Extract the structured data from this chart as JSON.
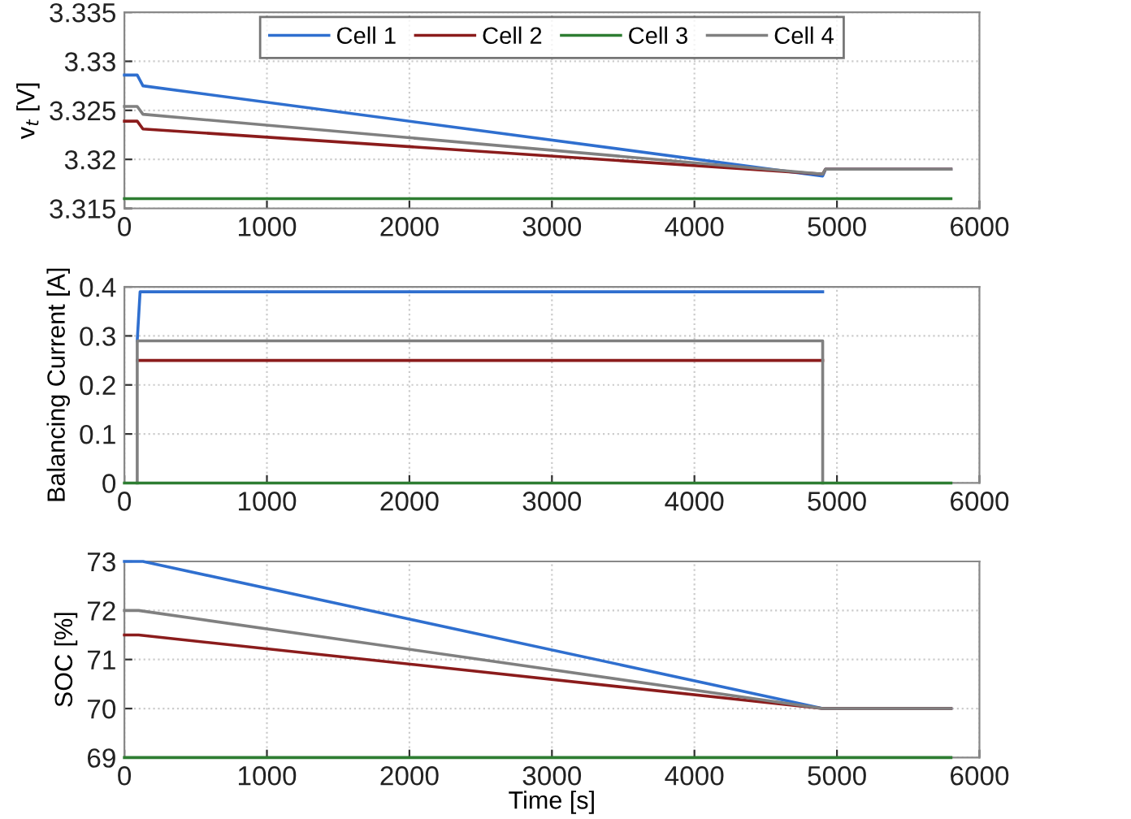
{
  "chart_data": [
    {
      "type": "line",
      "ylabel": "v$_{t}$ [V]",
      "xlim": [
        0,
        6000
      ],
      "xticks": [
        0,
        1000,
        2000,
        3000,
        4000,
        5000,
        6000
      ],
      "ylim": [
        3.315,
        3.335
      ],
      "yticks": [
        3.315,
        3.32,
        3.325,
        3.33,
        3.335
      ],
      "grid": true,
      "legend": "top",
      "line_style": "solid",
      "marker": "none",
      "series": [
        {
          "name": "Cell 1",
          "color": "#2f6fcf",
          "x": [
            0,
            90,
            130,
            4900,
            4920,
            5800
          ],
          "values": [
            3.3286,
            3.3286,
            3.3275,
            3.3183,
            3.319,
            3.319
          ]
        },
        {
          "name": "Cell 2",
          "color": "#8b1c1c",
          "x": [
            0,
            90,
            130,
            4900,
            4920,
            5800
          ],
          "values": [
            3.3239,
            3.3239,
            3.3231,
            3.3185,
            3.319,
            3.319
          ]
        },
        {
          "name": "Cell 3",
          "color": "#2e7d32",
          "x": [
            0,
            5800
          ],
          "values": [
            3.316,
            3.316
          ]
        },
        {
          "name": "Cell 4",
          "color": "#808080",
          "x": [
            0,
            90,
            130,
            4900,
            4920,
            5800
          ],
          "values": [
            3.3254,
            3.3254,
            3.3246,
            3.3185,
            3.319,
            3.319
          ]
        }
      ]
    },
    {
      "type": "line",
      "ylabel": "Balancing Current [A]",
      "xlim": [
        0,
        6000
      ],
      "xticks": [
        0,
        1000,
        2000,
        3000,
        4000,
        5000,
        6000
      ],
      "ylim": [
        0,
        0.4
      ],
      "yticks": [
        0,
        0.1,
        0.2,
        0.3,
        0.4
      ],
      "grid": true,
      "line_style": "solid",
      "marker": "none",
      "series": [
        {
          "color": "#2f6fcf",
          "x": [
            90,
            110,
            4900
          ],
          "values": [
            0.29,
            0.39,
            0.39
          ]
        },
        {
          "color": "#8b1c1c",
          "x": [
            90,
            4900
          ],
          "values": [
            0.25,
            0.25
          ]
        },
        {
          "color": "#808080",
          "x": [
            90,
            90,
            4900,
            4900
          ],
          "values": [
            0,
            0.29,
            0.29,
            0
          ]
        },
        {
          "color": "#2e7d32",
          "x": [
            0,
            5800
          ],
          "values": [
            0,
            0
          ]
        }
      ]
    },
    {
      "type": "line",
      "xlabel": "Time [s]",
      "ylabel": "SOC [%]",
      "xlim": [
        0,
        6000
      ],
      "xticks": [
        0,
        1000,
        2000,
        3000,
        4000,
        5000,
        6000
      ],
      "ylim": [
        69,
        73
      ],
      "yticks": [
        69,
        70,
        71,
        72,
        73
      ],
      "grid": true,
      "line_style": "solid",
      "marker": "none",
      "series": [
        {
          "color": "#2f6fcf",
          "x": [
            0,
            130,
            4900,
            5800
          ],
          "values": [
            73,
            73,
            70,
            70
          ]
        },
        {
          "color": "#8b1c1c",
          "x": [
            0,
            100,
            4900,
            5800
          ],
          "values": [
            71.5,
            71.5,
            70,
            70
          ]
        },
        {
          "color": "#2e7d32",
          "x": [
            0,
            5800
          ],
          "values": [
            69,
            69
          ]
        },
        {
          "color": "#808080",
          "x": [
            0,
            100,
            4900,
            5800
          ],
          "values": [
            72,
            72,
            70,
            70
          ]
        }
      ]
    }
  ]
}
